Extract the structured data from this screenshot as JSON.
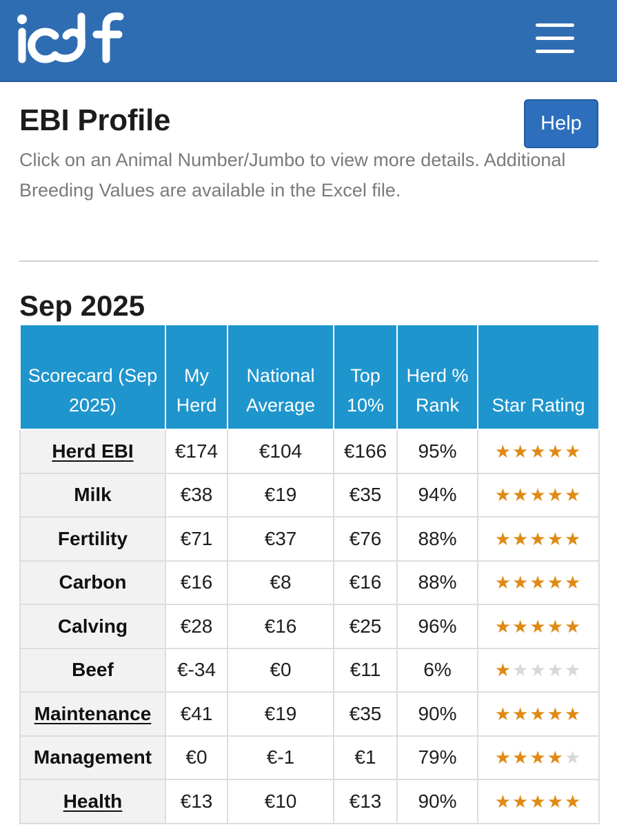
{
  "header": {
    "logo_text": "icbf",
    "brand_color": "#2f6db3",
    "menu_icon": "hamburger-menu-icon"
  },
  "page": {
    "title": "EBI Profile",
    "help_label": "Help",
    "intro": "Click on an Animal Number/Jumbo to view more details. Additional Breeding Values are available in the Excel file."
  },
  "section": {
    "title": "Sep 2025"
  },
  "table": {
    "headers": {
      "scorecard": "Scorecard (Sep 2025)",
      "my_herd": "My Herd",
      "national_average": "National Average",
      "top10": "Top 10%",
      "herd_rank": "Herd % Rank",
      "star_rating": "Star Rating"
    },
    "header_color": "#1f95cd",
    "star_color": "#e08a14",
    "rows": [
      {
        "trait": "Herd EBI",
        "link": true,
        "my_herd": "€174",
        "national": "€104",
        "top10": "€166",
        "rank": "95%",
        "stars": 5
      },
      {
        "trait": "Milk",
        "link": false,
        "my_herd": "€38",
        "national": "€19",
        "top10": "€35",
        "rank": "94%",
        "stars": 5
      },
      {
        "trait": "Fertility",
        "link": false,
        "my_herd": "€71",
        "national": "€37",
        "top10": "€76",
        "rank": "88%",
        "stars": 5
      },
      {
        "trait": "Carbon",
        "link": false,
        "my_herd": "€16",
        "national": "€8",
        "top10": "€16",
        "rank": "88%",
        "stars": 5
      },
      {
        "trait": "Calving",
        "link": false,
        "my_herd": "€28",
        "national": "€16",
        "top10": "€25",
        "rank": "96%",
        "stars": 5
      },
      {
        "trait": "Beef",
        "link": false,
        "my_herd": "€-34",
        "national": "€0",
        "top10": "€11",
        "rank": "6%",
        "stars": 1
      },
      {
        "trait": "Maintenance",
        "link": true,
        "my_herd": "€41",
        "national": "€19",
        "top10": "€35",
        "rank": "90%",
        "stars": 5
      },
      {
        "trait": "Management",
        "link": false,
        "my_herd": "€0",
        "national": "€-1",
        "top10": "€1",
        "rank": "79%",
        "stars": 4
      },
      {
        "trait": "Health",
        "link": true,
        "my_herd": "€13",
        "national": "€10",
        "top10": "€13",
        "rank": "90%",
        "stars": 5
      }
    ]
  }
}
